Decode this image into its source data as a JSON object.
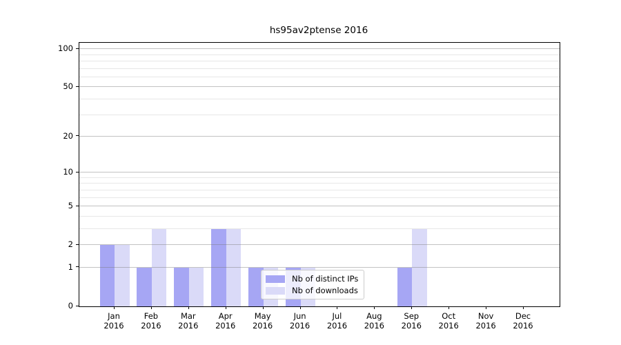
{
  "title": "hs95av2ptense 2016",
  "chart_data": {
    "type": "bar",
    "title": "hs95av2ptense 2016",
    "categories": [
      "Jan",
      "Feb",
      "Mar",
      "Apr",
      "May",
      "Jun",
      "Jul",
      "Aug",
      "Sep",
      "Oct",
      "Nov",
      "Dec"
    ],
    "year": "2016",
    "series": [
      {
        "name": "Nb of distinct IPs",
        "color": "#a6a6f4",
        "values": [
          2,
          1,
          1,
          3,
          1,
          1,
          0,
          0,
          1,
          0,
          0,
          0
        ]
      },
      {
        "name": "Nb of downloads",
        "color": "#dadaf8",
        "values": [
          2,
          3,
          1,
          3,
          1,
          1,
          0,
          0,
          3,
          0,
          0,
          0
        ]
      }
    ],
    "yscale": "log1p",
    "ymax": 112,
    "yticks": [
      0,
      1,
      2,
      5,
      10,
      20,
      50,
      100
    ],
    "yticks_minor": [
      3,
      4,
      6,
      7,
      8,
      9,
      30,
      40,
      60,
      70,
      80,
      90
    ],
    "grid": true,
    "legend_position": "lower center"
  }
}
